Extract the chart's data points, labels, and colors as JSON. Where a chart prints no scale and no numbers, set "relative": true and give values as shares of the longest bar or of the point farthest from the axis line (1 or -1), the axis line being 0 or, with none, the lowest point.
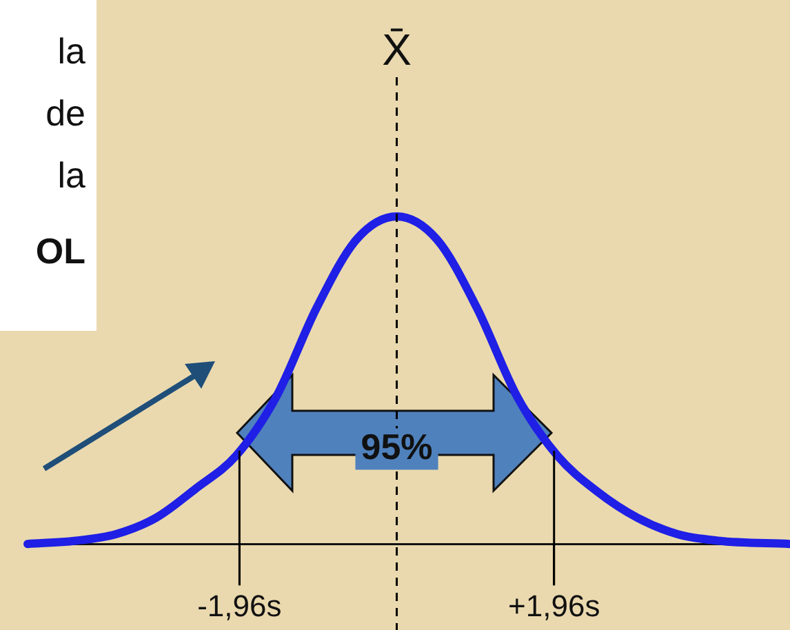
{
  "chart_data": {
    "type": "line",
    "relative": true,
    "x": [
      -4.6,
      -4,
      -3.5,
      -3,
      -2.5,
      -2,
      -1.5,
      -1,
      -0.5,
      0,
      0.5,
      1,
      1.5,
      2,
      2.5,
      3,
      3.5,
      4,
      4.9
    ],
    "series": [
      {
        "color": "#1f1fe6",
        "values": [
          0,
          0.01,
          0.03,
          0.08,
          0.17,
          0.27,
          0.45,
          0.72,
          0.93,
          1,
          0.93,
          0.72,
          0.45,
          0.27,
          0.16,
          0.08,
          0.03,
          0.01,
          0
        ]
      }
    ],
    "xlim": [
      -4.6,
      4.9
    ],
    "xticks": [
      {
        "value": -1.96,
        "label": "-1,96s"
      },
      {
        "value": 1.96,
        "label": "+1,96s"
      }
    ],
    "ref_lines": [
      {
        "axis": "x",
        "value": 0,
        "label": "X̄",
        "line_style": "dashed",
        "color": "#000000"
      },
      {
        "axis": "x",
        "value": -1.96,
        "label": null,
        "color": "#000000"
      },
      {
        "axis": "x",
        "value": 1.96,
        "label": null,
        "color": "#000000"
      }
    ],
    "annotations": [
      "la",
      "de",
      "la",
      "OL",
      {
        "text": "95%",
        "x": 0,
        "y": 0.29
      }
    ],
    "grid": false,
    "legend": false,
    "marker": "none",
    "line_style": "solid"
  }
}
